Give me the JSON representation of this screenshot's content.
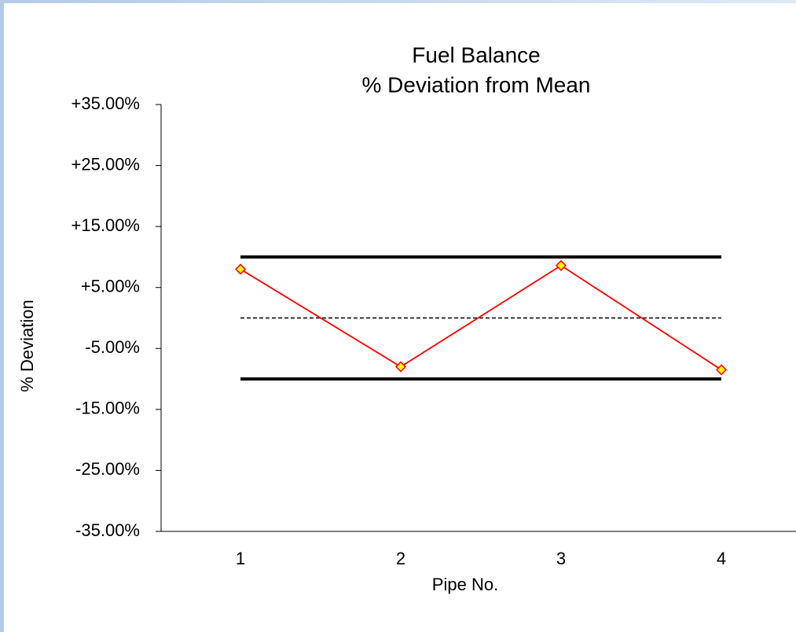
{
  "chart_data": {
    "type": "line",
    "title": "Fuel Balance",
    "subtitle": "% Deviation from Mean",
    "x_label": "Pipe No.",
    "y_label": "% Deviation",
    "categories": [
      "1",
      "2",
      "3",
      "4"
    ],
    "ylim": [
      -35,
      35
    ],
    "yticks": [
      {
        "value": 35,
        "label": "+35.00%"
      },
      {
        "value": 25,
        "label": "+25.00%"
      },
      {
        "value": 15,
        "label": "+15.00%"
      },
      {
        "value": 5,
        "label": "+5.00%"
      },
      {
        "value": -5,
        "label": "-5.00%"
      },
      {
        "value": -15,
        "label": "-15.00%"
      },
      {
        "value": -25,
        "label": "-25.00%"
      },
      {
        "value": -35,
        "label": "-35.00%"
      }
    ],
    "grid": false,
    "series": [
      {
        "values": [
          10,
          10,
          10,
          10
        ],
        "color": "#000000",
        "line_style": "thick"
      },
      {
        "values": [
          0,
          0,
          0,
          0
        ],
        "color": "#000000",
        "line_style": "dashed"
      },
      {
        "values": [
          -10,
          -10,
          -10,
          -10
        ],
        "color": "#000000",
        "line_style": "thick"
      },
      {
        "values": [
          8,
          -8,
          8.6,
          -8.5
        ],
        "color": "#ff0000",
        "line_style": "solid",
        "marker": "diamond",
        "marker_color": "#ffff00"
      }
    ]
  }
}
